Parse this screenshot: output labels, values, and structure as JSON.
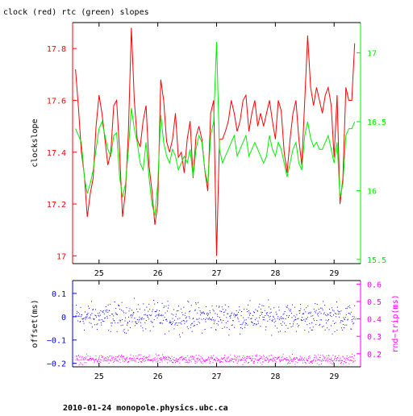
{
  "title": "clock (red) rtc (green) slopes",
  "footer": "2010-01-24 monopole.physics.ubc.ca",
  "colors": {
    "clock": "#ff0000",
    "rtc": "#00ee00",
    "offset": "#0000ff",
    "rndtrip": "#ff00ff",
    "frame": "#000000"
  },
  "chart_data": [
    {
      "type": "line",
      "title": "clock (red) rtc (green) slopes",
      "ylabel": "clockslope",
      "y2label": "",
      "xlim": [
        24.55,
        29.45
      ],
      "ylim": [
        16.97,
        17.9
      ],
      "y2lim": [
        15.47,
        17.22
      ],
      "xticks": [
        25,
        26,
        27,
        28,
        29
      ],
      "yticks": [
        17,
        17.2,
        17.4,
        17.6,
        17.8
      ],
      "y2ticks": [
        15.5,
        16,
        16.5,
        17
      ],
      "series": [
        {
          "name": "clock",
          "axis": "left",
          "color": "#ff0000",
          "x": [
            24.6,
            24.65,
            24.7,
            24.75,
            24.8,
            24.85,
            24.9,
            24.95,
            25.0,
            25.05,
            25.1,
            25.15,
            25.2,
            25.25,
            25.3,
            25.35,
            25.4,
            25.45,
            25.5,
            25.55,
            25.6,
            25.65,
            25.7,
            25.75,
            25.8,
            25.85,
            25.9,
            25.95,
            26.0,
            26.05,
            26.1,
            26.15,
            26.2,
            26.25,
            26.3,
            26.35,
            26.4,
            26.45,
            26.5,
            26.55,
            26.6,
            26.65,
            26.7,
            26.75,
            26.8,
            26.85,
            26.9,
            26.95,
            27.0,
            27.05,
            27.1,
            27.15,
            27.2,
            27.25,
            27.3,
            27.35,
            27.4,
            27.45,
            27.5,
            27.55,
            27.6,
            27.65,
            27.7,
            27.75,
            27.8,
            27.85,
            27.9,
            27.95,
            28.0,
            28.05,
            28.1,
            28.15,
            28.2,
            28.25,
            28.3,
            28.35,
            28.4,
            28.45,
            28.5,
            28.55,
            28.6,
            28.65,
            28.7,
            28.75,
            28.8,
            28.85,
            28.9,
            28.95,
            29.0,
            29.05,
            29.1,
            29.15,
            29.2,
            29.25,
            29.3,
            29.35
          ],
          "values": [
            17.72,
            17.57,
            17.4,
            17.31,
            17.15,
            17.24,
            17.3,
            17.5,
            17.62,
            17.55,
            17.45,
            17.35,
            17.4,
            17.58,
            17.6,
            17.4,
            17.15,
            17.25,
            17.48,
            17.88,
            17.6,
            17.45,
            17.42,
            17.52,
            17.58,
            17.35,
            17.25,
            17.12,
            17.2,
            17.68,
            17.6,
            17.44,
            17.4,
            17.45,
            17.55,
            17.38,
            17.4,
            17.32,
            17.45,
            17.52,
            17.3,
            17.46,
            17.5,
            17.45,
            17.33,
            17.25,
            17.55,
            17.6,
            17.0,
            17.45,
            17.45,
            17.48,
            17.52,
            17.6,
            17.55,
            17.48,
            17.52,
            17.6,
            17.62,
            17.48,
            17.55,
            17.6,
            17.5,
            17.55,
            17.5,
            17.55,
            17.6,
            17.52,
            17.45,
            17.6,
            17.56,
            17.4,
            17.32,
            17.45,
            17.55,
            17.6,
            17.45,
            17.35,
            17.6,
            17.85,
            17.65,
            17.58,
            17.65,
            17.6,
            17.55,
            17.62,
            17.65,
            17.58,
            17.38,
            17.62,
            17.2,
            17.3,
            17.65,
            17.6,
            17.6,
            17.82
          ]
        },
        {
          "name": "rtc",
          "axis": "right",
          "color": "#00ee00",
          "x": [
            24.6,
            24.65,
            24.7,
            24.75,
            24.8,
            24.85,
            24.9,
            24.95,
            25.0,
            25.05,
            25.1,
            25.15,
            25.2,
            25.25,
            25.3,
            25.35,
            25.4,
            25.45,
            25.5,
            25.55,
            25.6,
            25.65,
            25.7,
            25.75,
            25.8,
            25.85,
            25.9,
            25.95,
            26.0,
            26.05,
            26.1,
            26.15,
            26.2,
            26.25,
            26.3,
            26.35,
            26.4,
            26.45,
            26.5,
            26.55,
            26.6,
            26.65,
            26.7,
            26.75,
            26.8,
            26.85,
            26.9,
            26.95,
            27.0,
            27.05,
            27.1,
            27.15,
            27.2,
            27.25,
            27.3,
            27.35,
            27.4,
            27.45,
            27.5,
            27.55,
            27.6,
            27.65,
            27.7,
            27.75,
            27.8,
            27.85,
            27.9,
            27.95,
            28.0,
            28.05,
            28.1,
            28.15,
            28.2,
            28.25,
            28.3,
            28.35,
            28.4,
            28.45,
            28.5,
            28.55,
            28.6,
            28.65,
            28.7,
            28.75,
            28.8,
            28.85,
            28.9,
            28.95,
            29.0,
            29.05,
            29.1,
            29.15,
            29.2,
            29.25,
            29.3,
            29.35
          ],
          "values": [
            16.45,
            16.4,
            16.35,
            16.1,
            15.98,
            16.05,
            16.15,
            16.3,
            16.45,
            16.5,
            16.4,
            16.3,
            16.25,
            16.4,
            16.42,
            16.1,
            15.95,
            16.05,
            16.3,
            16.6,
            16.45,
            16.35,
            16.2,
            16.15,
            16.35,
            16.1,
            15.9,
            15.82,
            16.05,
            16.55,
            16.35,
            16.25,
            16.2,
            16.3,
            16.25,
            16.15,
            16.2,
            16.25,
            16.2,
            16.3,
            16.1,
            16.3,
            16.4,
            16.35,
            16.15,
            16.05,
            16.4,
            16.5,
            17.08,
            16.3,
            16.2,
            16.25,
            16.3,
            16.35,
            16.4,
            16.25,
            16.3,
            16.35,
            16.4,
            16.25,
            16.3,
            16.35,
            16.3,
            16.25,
            16.2,
            16.25,
            16.4,
            16.3,
            16.25,
            16.35,
            16.3,
            16.2,
            16.1,
            16.2,
            16.3,
            16.35,
            16.2,
            16.15,
            16.4,
            16.5,
            16.38,
            16.32,
            16.35,
            16.3,
            16.3,
            16.35,
            16.4,
            16.3,
            16.2,
            16.35,
            15.95,
            16.05,
            16.4,
            16.45,
            16.45,
            16.5
          ]
        }
      ]
    },
    {
      "type": "scatter",
      "ylabel": "offset(ms)",
      "y2label": "rnd−trip(ms)",
      "xlim": [
        24.55,
        29.45
      ],
      "ylim": [
        -0.215,
        0.155
      ],
      "y2lim": [
        0.125,
        0.62
      ],
      "xticks": [
        25,
        26,
        27,
        28,
        29
      ],
      "yticks": [
        -0.2,
        -0.1,
        0,
        0.1
      ],
      "y2ticks": [
        0.2,
        0.3,
        0.4,
        0.5,
        0.6
      ],
      "series": [
        {
          "name": "offset",
          "axis": "left",
          "color": "#0000ff",
          "x_range": [
            24.6,
            29.35
          ],
          "center": 0.0,
          "spread": 0.03
        },
        {
          "name": "rnd-trip",
          "axis": "right",
          "color": "#ff00ff",
          "x_range": [
            24.6,
            29.35
          ],
          "center": 0.17,
          "spread": 0.012
        }
      ]
    }
  ]
}
